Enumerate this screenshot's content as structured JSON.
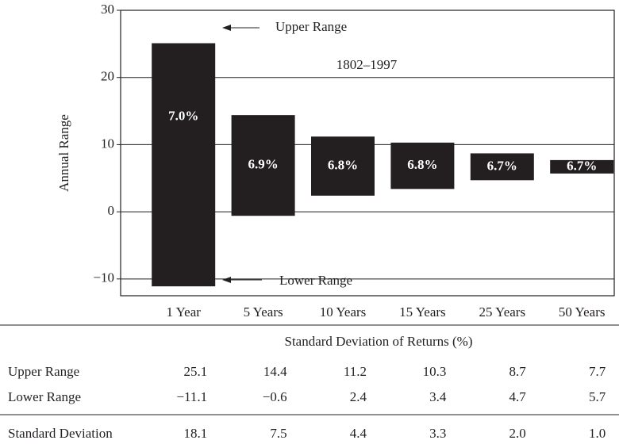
{
  "chart_data": {
    "type": "floating_bar",
    "ylabel": "Annual Range",
    "categories": [
      "1 Year",
      "5 Years",
      "10 Years",
      "15 Years",
      "25 Years",
      "50 Years"
    ],
    "series": [
      {
        "name": "Upper Range",
        "color": "#231f20",
        "values": [
          25.1,
          14.4,
          11.2,
          10.3,
          8.7,
          7.7
        ]
      },
      {
        "name": "Lower Range",
        "color": "#231f20",
        "values": [
          -11.1,
          -0.6,
          2.4,
          3.4,
          4.7,
          5.7
        ],
        "value_labels": [
          "−11.1",
          "−0.6",
          "2.4",
          "3.4",
          "4.7",
          "5.7"
        ]
      }
    ],
    "bar_labels": {
      "values": [
        7.0,
        6.9,
        6.8,
        6.8,
        6.7,
        6.7
      ],
      "value_labels": [
        "7.0%",
        "6.9%",
        "6.8%",
        "6.8%",
        "6.7%",
        "6.7%"
      ]
    },
    "annotations": [
      "Upper Range",
      "Lower Range",
      "1802–1997"
    ],
    "ylim": [
      -12.5,
      30
    ],
    "yticks": [
      30,
      20,
      10,
      0,
      {
        "value": -10,
        "label": "−10"
      }
    ],
    "grid": true,
    "table": {
      "title": "Standard Deviation of Returns (%)",
      "std_dev": {
        "name": "Standard Deviation",
        "values": [
          18.1,
          7.5,
          4.4,
          3.3,
          2.0,
          1.0
        ],
        "value_labels": [
          "18.1",
          "7.5",
          "4.4",
          "3.3",
          "2.0",
          "1.0"
        ]
      }
    }
  }
}
